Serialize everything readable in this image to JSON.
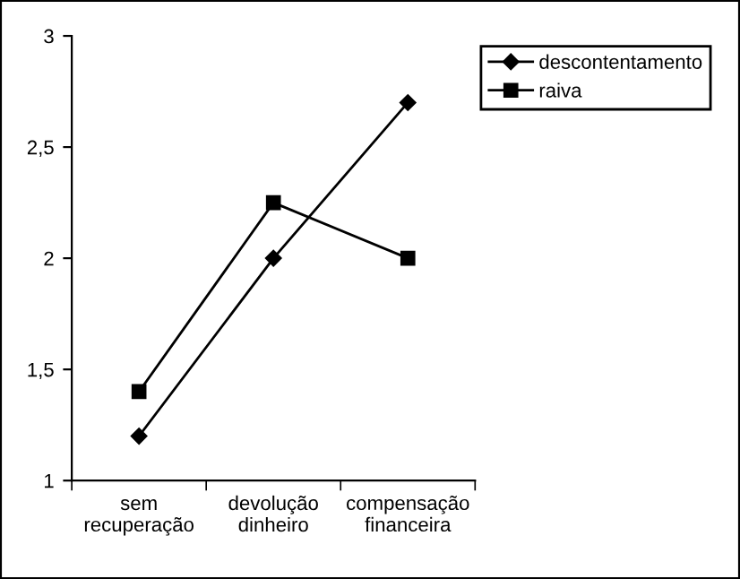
{
  "chart_data": {
    "type": "line",
    "categories": [
      "sem\nrecuperação",
      "devolução\ndinheiro",
      "compensação\nfinanceira"
    ],
    "series": [
      {
        "name": "descontentamento",
        "color": "#000000",
        "marker": "diamond",
        "values": [
          1.2,
          2.0,
          2.7
        ]
      },
      {
        "name": "raiva",
        "color": "#000000",
        "marker": "square",
        "values": [
          1.4,
          2.25,
          2.0
        ]
      }
    ],
    "ylim": [
      1,
      3
    ],
    "yticks": [
      1,
      {
        "value": 1.5,
        "label": "1,5"
      },
      2,
      {
        "value": 2.5,
        "label": "2,5"
      },
      3
    ],
    "grid": false,
    "legend": "right",
    "line_style": "solid"
  }
}
